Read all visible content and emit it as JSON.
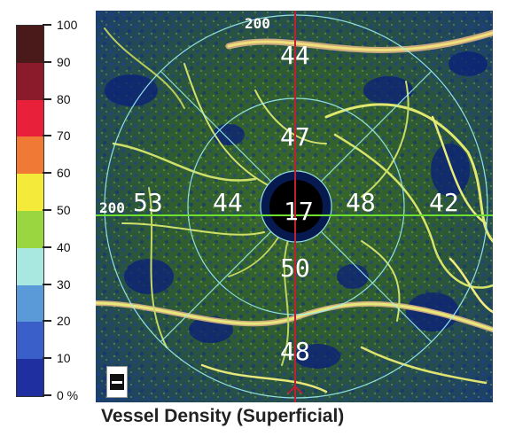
{
  "legend": {
    "ticks": [
      "100",
      "90",
      "80",
      "70",
      "60",
      "50",
      "40",
      "30",
      "20",
      "10",
      "0 %"
    ],
    "bands": [
      {
        "color": "#4a1a1a"
      },
      {
        "color": "#8b1a2a"
      },
      {
        "color": "#e8203a"
      },
      {
        "color": "#f07a35"
      },
      {
        "color": "#f4ea3a"
      },
      {
        "color": "#9ad640"
      },
      {
        "color": "#a8e8e0"
      },
      {
        "color": "#5a9ad8"
      },
      {
        "color": "#3a5fc8"
      },
      {
        "color": "#1f2fa0"
      }
    ]
  },
  "map": {
    "scale_top": "200",
    "scale_left": "200",
    "sectors": {
      "outer_top": "44",
      "inner_top": "47",
      "outer_left": "53",
      "inner_left": "44",
      "center": "17",
      "inner_right": "48",
      "outer_right": "42",
      "inner_bottom": "50",
      "outer_bottom": "48"
    }
  },
  "caption": "Vessel Density (Superficial)"
}
